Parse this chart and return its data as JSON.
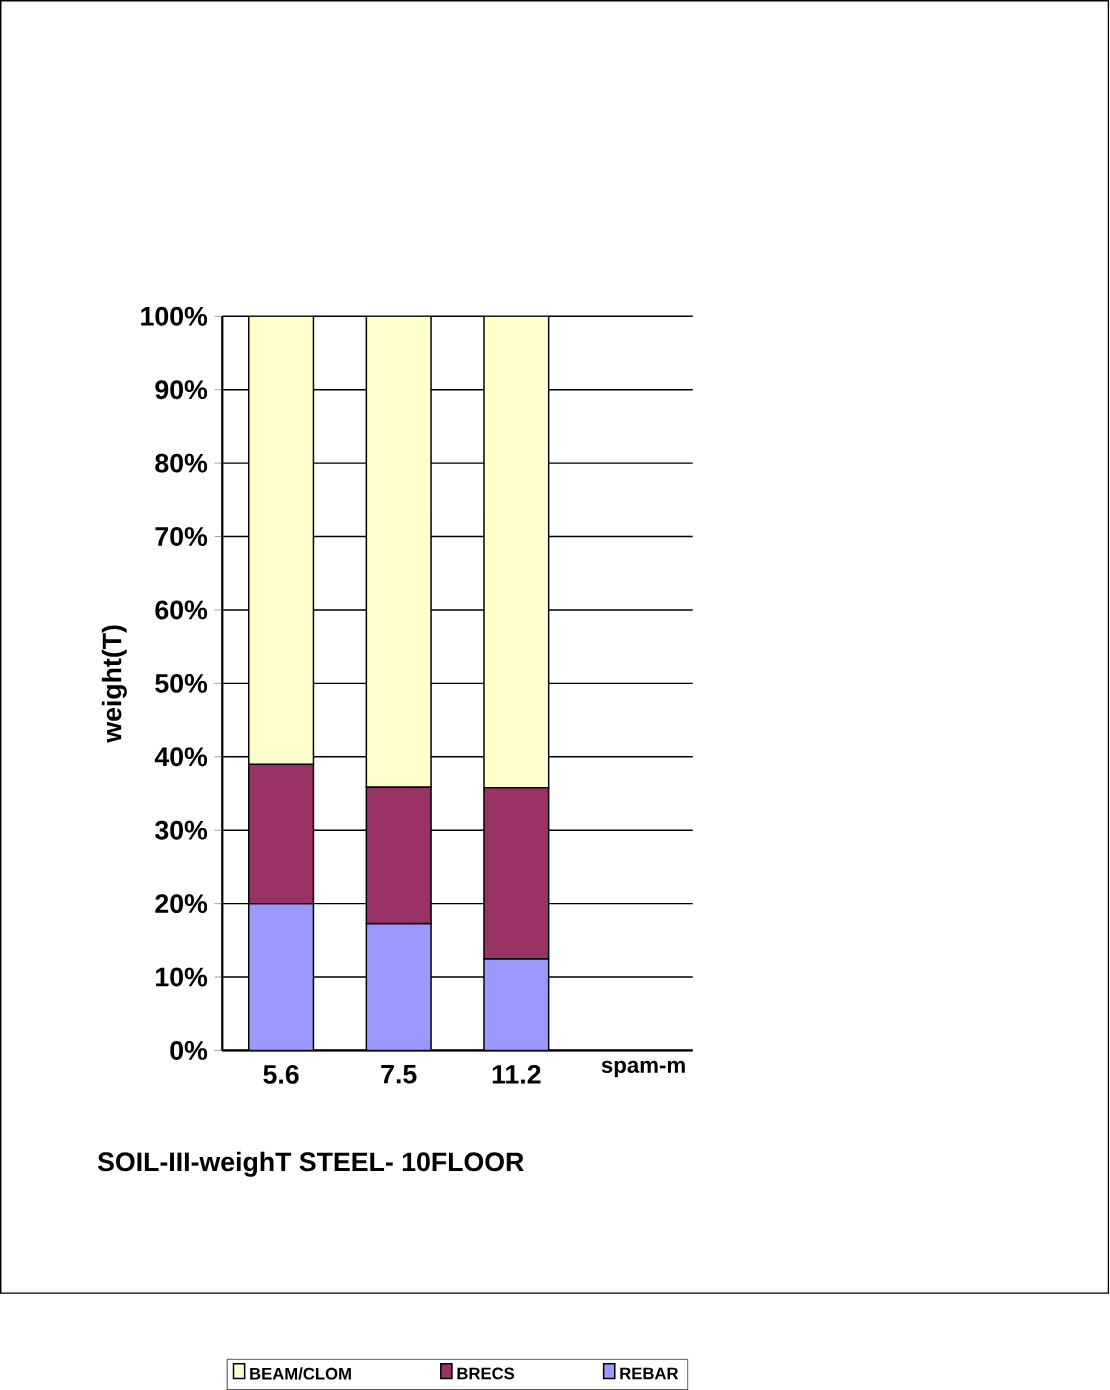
{
  "chart_data": {
    "type": "bar",
    "stacked": true,
    "title": "SOIL-III-weighT STEEL- 10FLOOR",
    "xlabel": "spam-m",
    "ylabel": "weight(T)",
    "categories": [
      "5.6",
      "7.5",
      "11.2"
    ],
    "series": [
      {
        "name": "REBAR",
        "color": "#9999ff",
        "values": [
          20,
          17.3,
          12.5
        ]
      },
      {
        "name": "BRECS",
        "color": "#993366",
        "values": [
          19,
          18.6,
          23.3
        ]
      },
      {
        "name": "BEAM/CLOM",
        "color": "#ffffcc",
        "values": [
          61,
          64.1,
          64.2
        ]
      }
    ],
    "ylim": [
      0,
      100
    ],
    "yticks": [
      {
        "value": 0,
        "label": "0%"
      },
      {
        "value": 10,
        "label": "10%"
      },
      {
        "value": 20,
        "label": "20%"
      },
      {
        "value": 30,
        "label": "30%"
      },
      {
        "value": 40,
        "label": "40%"
      },
      {
        "value": 50,
        "label": "50%"
      },
      {
        "value": 60,
        "label": "60%"
      },
      {
        "value": 70,
        "label": "70%"
      },
      {
        "value": 80,
        "label": "80%"
      },
      {
        "value": 90,
        "label": "90%"
      },
      {
        "value": 100,
        "label": "100%"
      }
    ],
    "grid": "y",
    "legend": "bottom"
  }
}
